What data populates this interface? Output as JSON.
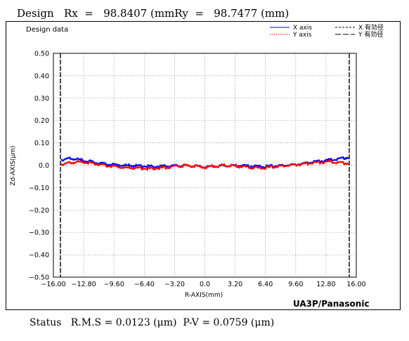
{
  "header": {
    "label": "Design",
    "rx_label": "Rx",
    "eq1": "=",
    "rx_value": "98.8407",
    "rx_unit_ry": "(mmRy",
    "eq2": "=",
    "ry_value": "98.7477",
    "ry_unit": "(mm)"
  },
  "footer": {
    "status_label": "Status",
    "rms_text": "R.M.S = 0.0123 (μm)",
    "pv_text": "P-V = 0.0759 (μm)"
  },
  "brand": "UA3P/Panasonic",
  "chart_data": {
    "type": "line",
    "title": "Design data",
    "xlabel": "R-AXIS(mm)",
    "ylabel": "Zd-AXIS(μm)",
    "xlim": [
      -16.0,
      16.0
    ],
    "ylim": [
      -0.5,
      0.5
    ],
    "x_ticks": [
      "−16.00",
      "−12.80",
      "−9.60",
      "−6.40",
      "−3.20",
      "0.0",
      "3.20",
      "6.40",
      "9.60",
      "12.80",
      "16.00"
    ],
    "y_ticks": [
      "0.50",
      "0.40",
      "0.30",
      "0.20",
      "0.10",
      "0.0",
      "−0.10",
      "−0.20",
      "−0.30",
      "−0.40",
      "−0.50"
    ],
    "grid": true,
    "legend_position": "top-right",
    "effective_diameter_x": [
      -16.0,
      16.0
    ],
    "legend": [
      {
        "label": "X axis",
        "color": "#0000ff",
        "style": "solid"
      },
      {
        "label": "X 有効径",
        "color": "#000000",
        "style": "dashed"
      },
      {
        "label": "Y axis",
        "color": "#ff0000",
        "style": "dotted"
      },
      {
        "label": "Y 有効径",
        "color": "#000000",
        "style": "longdash"
      }
    ],
    "series": [
      {
        "name": "X axis",
        "color": "#0000ff",
        "x": [
          -16.0,
          -15.0,
          -14.0,
          -13.0,
          -12.0,
          -11.0,
          -10.0,
          -9.0,
          -8.0,
          -7.0,
          -6.0,
          -5.0,
          -4.0,
          -3.0,
          -2.0,
          -1.0,
          0.0,
          1.0,
          2.0,
          3.0,
          4.0,
          5.0,
          6.0,
          7.0,
          8.0,
          9.0,
          10.0,
          11.0,
          12.0,
          13.0,
          14.0,
          15.0,
          16.0
        ],
        "y": [
          0.025,
          0.03,
          0.025,
          0.018,
          0.01,
          0.005,
          0.002,
          0.0,
          -0.002,
          -0.004,
          -0.005,
          -0.005,
          -0.003,
          -0.002,
          -0.002,
          -0.004,
          -0.008,
          -0.004,
          -0.002,
          -0.001,
          -0.002,
          -0.004,
          -0.006,
          -0.005,
          -0.002,
          0.0,
          0.003,
          0.008,
          0.014,
          0.02,
          0.025,
          0.03,
          0.035
        ]
      },
      {
        "name": "Y axis",
        "color": "#ff0000",
        "x": [
          -16.0,
          -15.0,
          -14.0,
          -13.0,
          -12.0,
          -11.0,
          -10.0,
          -9.0,
          -8.0,
          -7.0,
          -6.0,
          -5.0,
          -4.0,
          -3.0,
          -2.0,
          -1.0,
          0.0,
          1.0,
          2.0,
          3.0,
          4.0,
          5.0,
          6.0,
          7.0,
          8.0,
          9.0,
          10.0,
          11.0,
          12.0,
          13.0,
          14.0,
          15.0,
          16.0
        ],
        "y": [
          0.005,
          0.01,
          0.015,
          0.012,
          0.005,
          -0.002,
          -0.006,
          -0.01,
          -0.012,
          -0.014,
          -0.015,
          -0.012,
          -0.008,
          -0.004,
          -0.002,
          -0.004,
          -0.01,
          -0.004,
          0.0,
          -0.002,
          -0.006,
          -0.01,
          -0.014,
          -0.01,
          -0.005,
          -0.002,
          0.002,
          0.006,
          0.01,
          0.014,
          0.016,
          0.012,
          0.008
        ]
      }
    ]
  }
}
